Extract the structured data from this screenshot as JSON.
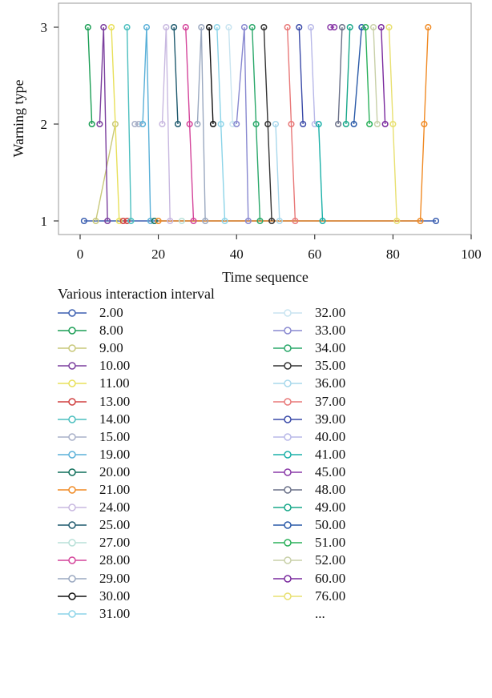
{
  "chart_data": {
    "type": "line",
    "xlabel": "Time sequence",
    "ylabel": "Warning type",
    "xlim": [
      -5,
      100
    ],
    "ylim": [
      0.9,
      3.1
    ],
    "xticks": [
      0,
      20,
      40,
      60,
      80,
      100
    ],
    "yticks": [
      1,
      2,
      3
    ],
    "grid": false,
    "legend_title": "Various interaction interval",
    "legend_placement": "bottom",
    "legend_overflow_label": "...",
    "series": [
      {
        "name": "2.00",
        "color": "#3b5fb0",
        "points": [
          [
            1,
            1
          ],
          [
            91,
            1
          ]
        ]
      },
      {
        "name": "8.00",
        "color": "#1b9e55",
        "points": [
          [
            2,
            3
          ],
          [
            3,
            2
          ]
        ]
      },
      {
        "name": "9.00",
        "color": "#c8c87a",
        "points": [
          [
            4,
            1
          ],
          [
            9,
            2
          ]
        ]
      },
      {
        "name": "10.00",
        "color": "#7b3f9e",
        "points": [
          [
            5,
            2
          ],
          [
            6,
            3
          ],
          [
            7,
            1
          ]
        ]
      },
      {
        "name": "11.00",
        "color": "#e8e05a",
        "points": [
          [
            8,
            3
          ],
          [
            10,
            1
          ]
        ]
      },
      {
        "name": "13.00",
        "color": "#d04040",
        "points": [
          [
            11,
            1
          ],
          [
            12,
            1
          ]
        ]
      },
      {
        "name": "14.00",
        "color": "#4bbfbf",
        "points": [
          [
            12,
            3
          ],
          [
            13,
            1
          ]
        ]
      },
      {
        "name": "15.00",
        "color": "#a8b0c8",
        "points": [
          [
            14,
            2
          ],
          [
            15,
            2
          ]
        ]
      },
      {
        "name": "19.00",
        "color": "#5ab0d8",
        "points": [
          [
            16,
            2
          ],
          [
            17,
            3
          ],
          [
            18,
            1
          ]
        ]
      },
      {
        "name": "20.00",
        "color": "#0f6e5a",
        "points": [
          [
            19,
            1
          ]
        ]
      },
      {
        "name": "21.00",
        "color": "#f08a24",
        "points": [
          [
            20,
            1
          ],
          [
            87,
            1
          ],
          [
            88,
            2
          ],
          [
            89,
            3
          ]
        ]
      },
      {
        "name": "24.00",
        "color": "#c8b8e0",
        "points": [
          [
            21,
            2
          ],
          [
            22,
            3
          ],
          [
            23,
            1
          ]
        ]
      },
      {
        "name": "25.00",
        "color": "#1f5a6e",
        "points": [
          [
            24,
            3
          ],
          [
            25,
            2
          ]
        ]
      },
      {
        "name": "27.00",
        "color": "#b8e0d8",
        "points": [
          [
            26,
            1
          ]
        ]
      },
      {
        "name": "28.00",
        "color": "#d4449a",
        "points": [
          [
            27,
            3
          ],
          [
            28,
            2
          ],
          [
            29,
            1
          ]
        ]
      },
      {
        "name": "29.00",
        "color": "#9aa8c0",
        "points": [
          [
            30,
            2
          ],
          [
            31,
            3
          ],
          [
            32,
            1
          ]
        ]
      },
      {
        "name": "30.00",
        "color": "#111111",
        "points": [
          [
            33,
            3
          ],
          [
            34,
            2
          ]
        ]
      },
      {
        "name": "31.00",
        "color": "#8cd4e8",
        "points": [
          [
            35,
            3
          ],
          [
            36,
            2
          ],
          [
            37,
            1
          ]
        ]
      },
      {
        "name": "32.00",
        "color": "#c8e4f0",
        "points": [
          [
            38,
            3
          ],
          [
            39,
            2
          ]
        ]
      },
      {
        "name": "33.00",
        "color": "#8888d0",
        "points": [
          [
            40,
            2
          ],
          [
            42,
            3
          ],
          [
            43,
            1
          ]
        ]
      },
      {
        "name": "34.00",
        "color": "#2aa86a",
        "points": [
          [
            44,
            3
          ],
          [
            45,
            2
          ],
          [
            46,
            1
          ]
        ]
      },
      {
        "name": "35.00",
        "color": "#333333",
        "points": [
          [
            47,
            3
          ],
          [
            48,
            2
          ],
          [
            49,
            1
          ]
        ]
      },
      {
        "name": "36.00",
        "color": "#a8d8ec",
        "points": [
          [
            50,
            2
          ],
          [
            51,
            1
          ]
        ]
      },
      {
        "name": "37.00",
        "color": "#e87878",
        "points": [
          [
            53,
            3
          ],
          [
            54,
            2
          ],
          [
            55,
            1
          ]
        ]
      },
      {
        "name": "39.00",
        "color": "#3a4aa8",
        "points": [
          [
            56,
            3
          ],
          [
            57,
            2
          ]
        ]
      },
      {
        "name": "40.00",
        "color": "#b8b8e8",
        "points": [
          [
            59,
            3
          ],
          [
            60,
            2
          ]
        ]
      },
      {
        "name": "41.00",
        "color": "#1ab0a8",
        "points": [
          [
            61,
            2
          ],
          [
            62,
            1
          ]
        ]
      },
      {
        "name": "45.00",
        "color": "#8a3aa8",
        "points": [
          [
            64,
            3
          ],
          [
            65,
            3
          ]
        ]
      },
      {
        "name": "48.00",
        "color": "#6a7088",
        "points": [
          [
            66,
            2
          ],
          [
            67,
            3
          ]
        ]
      },
      {
        "name": "49.00",
        "color": "#18a88a",
        "points": [
          [
            68,
            2
          ],
          [
            69,
            3
          ]
        ]
      },
      {
        "name": "50.00",
        "color": "#2a5aa8",
        "points": [
          [
            70,
            2
          ],
          [
            72,
            3
          ]
        ]
      },
      {
        "name": "51.00",
        "color": "#2ab05a",
        "points": [
          [
            73,
            3
          ],
          [
            74,
            2
          ]
        ]
      },
      {
        "name": "52.00",
        "color": "#c8d0a8",
        "points": [
          [
            75,
            3
          ],
          [
            76,
            2
          ]
        ]
      },
      {
        "name": "60.00",
        "color": "#7a2a9e",
        "points": [
          [
            77,
            3
          ],
          [
            78,
            2
          ]
        ]
      },
      {
        "name": "76.00",
        "color": "#e8e070",
        "points": [
          [
            79,
            3
          ],
          [
            80,
            2
          ],
          [
            81,
            1
          ]
        ]
      }
    ]
  }
}
